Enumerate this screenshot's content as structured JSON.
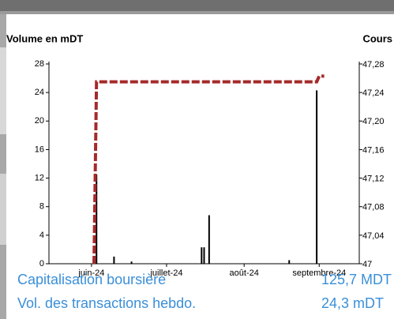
{
  "chart_data": {
    "type": "bar",
    "y_label": "Volume en mDT",
    "y2_label": "Cours",
    "xlim": [
      0,
      124
    ],
    "xticks": [
      {
        "value": 17,
        "label": "juin-24"
      },
      {
        "value": 47,
        "label": "juillet-24"
      },
      {
        "value": 78,
        "label": "août-24"
      },
      {
        "value": 108,
        "label": "septembre-24"
      }
    ],
    "ylim": [
      0,
      28
    ],
    "yticks": [
      0,
      4,
      8,
      12,
      16,
      20,
      24,
      28
    ],
    "y2lim": [
      47,
      47.28
    ],
    "y2ticks": [
      47,
      {
        "value": 47.04,
        "label": "47,04"
      },
      {
        "value": 47.08,
        "label": "47,08"
      },
      {
        "value": 47.12,
        "label": "47,12"
      },
      {
        "value": 47.16,
        "label": "47,16"
      },
      {
        "value": 47.2,
        "label": "47,20"
      },
      {
        "value": 47.24,
        "label": "47,24"
      },
      {
        "value": 47.28,
        "label": "47,28"
      }
    ],
    "series": [
      {
        "type": "bar",
        "color": "#000000",
        "x": [
          19,
          26,
          33,
          61,
          62,
          64,
          96,
          107
        ],
        "values": [
          12.5,
          1,
          0.3,
          2.3,
          2.3,
          6.8,
          0.5,
          24.3
        ]
      },
      {
        "type": "line",
        "axis": "y2",
        "color": "#a52a2a",
        "dashed": true,
        "x": [
          18,
          19,
          107,
          108,
          110
        ],
        "values": [
          47,
          47.255,
          47.255,
          47.263,
          47.263
        ]
      }
    ]
  },
  "summary": {
    "rows": [
      [
        "Capitalisation boursière",
        "125,7 MDT"
      ],
      [
        "Vol. des transactions hebdo.",
        "24,3 mDT"
      ]
    ]
  }
}
